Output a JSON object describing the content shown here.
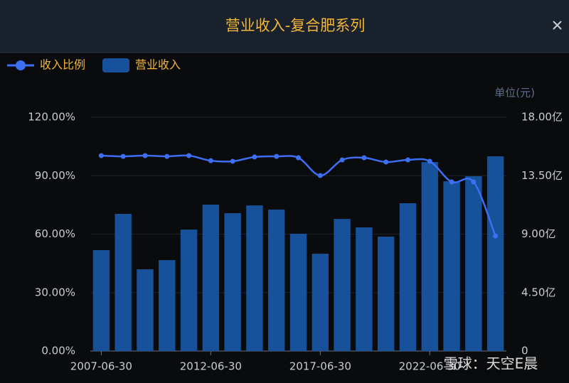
{
  "header": {
    "title": "营业收入-复合肥系列"
  },
  "chart_data": {
    "type": "combo",
    "categories": [
      "2007-06-30",
      null,
      null,
      null,
      null,
      "2012-06-30",
      null,
      null,
      null,
      null,
      "2017-06-30",
      null,
      null,
      null,
      null,
      "2022-06-30",
      null,
      null,
      null
    ],
    "series": [
      {
        "name": "收入比例",
        "type": "line",
        "color": "#3d6ff5",
        "axis": "y",
        "values": [
          100.3,
          99.9,
          100.3,
          99.9,
          100.3,
          97.7,
          97.4,
          99.6,
          99.9,
          99.2,
          90.1,
          98.1,
          99.2,
          97.0,
          98.1,
          97.4,
          86.8,
          86.8,
          59.1
        ]
      },
      {
        "name": "营业收入",
        "type": "bar",
        "color": "#17519a",
        "axis": "y2",
        "values": [
          7.77,
          10.56,
          6.29,
          7.0,
          9.35,
          11.27,
          10.61,
          11.21,
          10.89,
          9.03,
          7.49,
          10.17,
          9.52,
          8.81,
          11.38,
          14.55,
          13.07,
          13.46,
          14.99
        ]
      }
    ],
    "ylim": [
      0,
      120
    ],
    "yticks": [
      {
        "value": 0,
        "label": "0.00%"
      },
      {
        "value": 30,
        "label": "30.00%"
      },
      {
        "value": 60,
        "label": "60.00%"
      },
      {
        "value": 90,
        "label": "90.00%"
      },
      {
        "value": 120,
        "label": "120.00%"
      }
    ],
    "y2lim": [
      0,
      18
    ],
    "y2ticks": [
      0,
      {
        "value": 4.5,
        "label": "4.50亿"
      },
      {
        "value": 9,
        "label": "9.00亿"
      },
      {
        "value": 13.5,
        "label": "13.50亿"
      },
      {
        "value": 18,
        "label": "18.00亿"
      }
    ],
    "y2_unit": "单位(元)",
    "grid": true,
    "watermark": "雪球：天空E晨"
  }
}
